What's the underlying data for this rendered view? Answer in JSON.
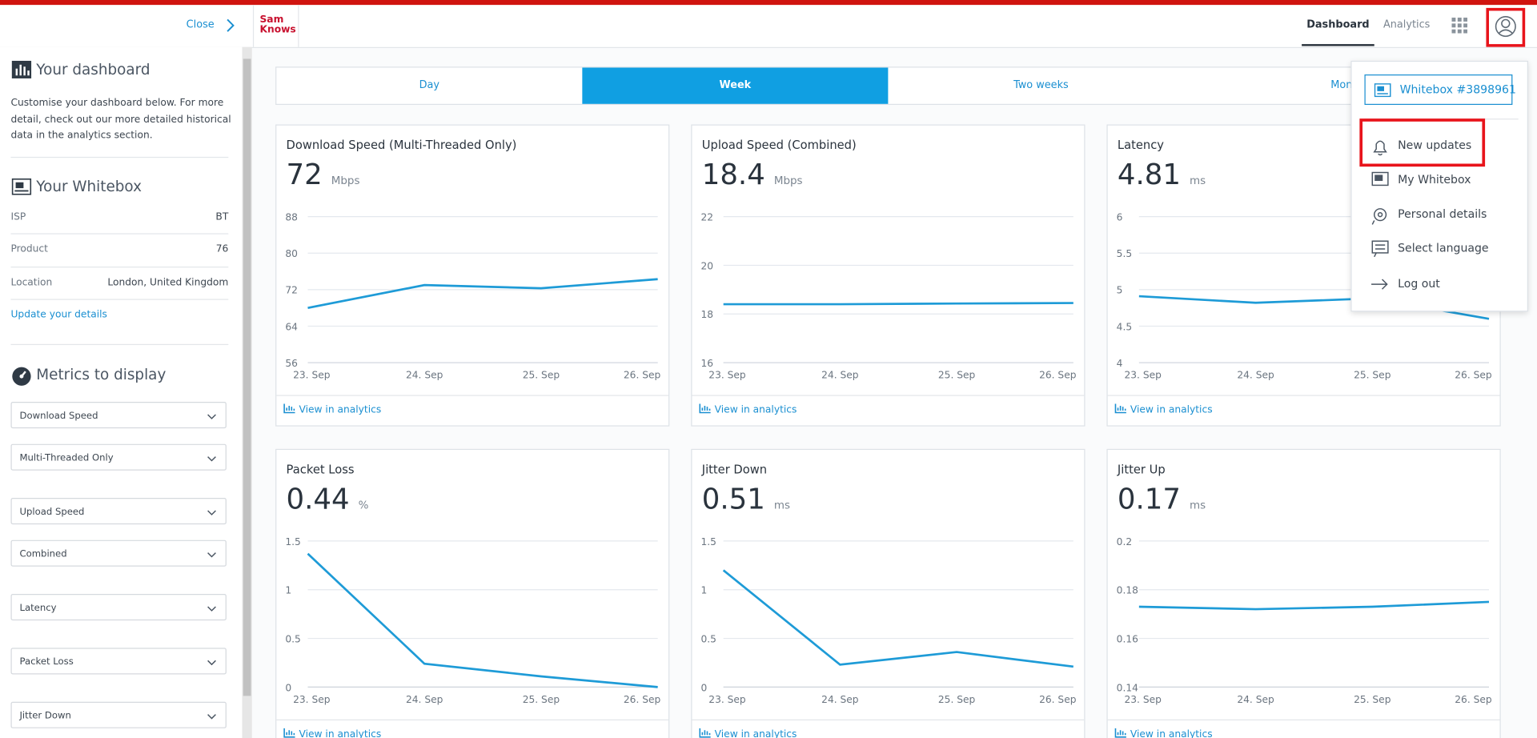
{
  "header": {
    "close": "Close",
    "logo": [
      "Sam",
      "Knows"
    ],
    "nav": [
      "Dashboard",
      "Analytics"
    ]
  },
  "sidebar": {
    "dashboard_title": "Your dashboard",
    "intro": [
      "Customise your dashboard below. For more",
      "detail, check out our more detailed historical",
      "data in the analytics section."
    ],
    "whitebox_title": "Your Whitebox",
    "details": [
      {
        "label": "ISP",
        "value": "BT"
      },
      {
        "label": "Product",
        "value": "76"
      },
      {
        "label": "Location",
        "value": "London, United Kingdom"
      }
    ],
    "update_link": "Update your details",
    "metrics_title": "Metrics to display",
    "selects": [
      "Download Speed",
      "Multi-Threaded Only",
      "Upload Speed",
      "Combined",
      "Latency",
      "Packet Loss",
      "Jitter Down"
    ]
  },
  "tabs": [
    "Day",
    "Week",
    "Two weeks",
    "Month"
  ],
  "cards": [
    {
      "title": "Download Speed (Multi-Threaded Only)",
      "value": 72,
      "unit": "Mbps",
      "link": "View in analytics",
      "chart": {
        "type": "line",
        "color": "#1e9bd7",
        "categories": [
          "23. Sep",
          "24. Sep",
          "25. Sep",
          "26. Sep"
        ],
        "values": [
          68,
          73,
          72.3,
          74.3
        ],
        "ylim": [
          56,
          88
        ],
        "yticks": [
          56,
          64,
          72,
          80,
          88
        ]
      }
    },
    {
      "title": "Upload Speed (Combined)",
      "value": 18.4,
      "unit": "Mbps",
      "link": "View in analytics",
      "chart": {
        "type": "line",
        "color": "#1e9bd7",
        "categories": [
          "23. Sep",
          "24. Sep",
          "25. Sep",
          "26. Sep"
        ],
        "values": [
          18.4,
          18.4,
          18.43,
          18.45
        ],
        "ylim": [
          16,
          22
        ],
        "yticks": [
          16,
          18,
          20,
          22
        ]
      }
    },
    {
      "title": "Latency",
      "value": 4.81,
      "unit": "ms",
      "link": "View in analytics",
      "chart": {
        "type": "line",
        "color": "#1e9bd7",
        "categories": [
          "23. Sep",
          "24. Sep",
          "25. Sep",
          "26. Sep"
        ],
        "values": [
          4.91,
          4.82,
          4.88,
          4.6
        ],
        "ylim": [
          4,
          6
        ],
        "yticks": [
          4,
          4.5,
          5,
          5.5,
          6
        ]
      }
    },
    {
      "title": "Packet Loss",
      "value": 0.44,
      "unit": "%",
      "link": "View in analytics",
      "chart": {
        "type": "line",
        "color": "#1e9bd7",
        "categories": [
          "23. Sep",
          "24. Sep",
          "25. Sep",
          "26. Sep"
        ],
        "values": [
          1.37,
          0.24,
          0.11,
          0
        ],
        "ylim": [
          0,
          1.5
        ],
        "yticks": [
          0,
          0.5,
          1,
          1.5
        ]
      }
    },
    {
      "title": "Jitter Down",
      "value": 0.51,
      "unit": "ms",
      "link": "View in analytics",
      "chart": {
        "type": "line",
        "color": "#1e9bd7",
        "categories": [
          "23. Sep",
          "24. Sep",
          "25. Sep",
          "26. Sep"
        ],
        "values": [
          1.2,
          0.23,
          0.36,
          0.21
        ],
        "ylim": [
          0,
          1.5
        ],
        "yticks": [
          0,
          0.5,
          1,
          1.5
        ]
      }
    },
    {
      "title": "Jitter Up",
      "value": 0.17,
      "unit": "ms",
      "link": "View in analytics",
      "chart": {
        "type": "line",
        "color": "#1e9bd7",
        "categories": [
          "23. Sep",
          "24. Sep",
          "25. Sep",
          "26. Sep"
        ],
        "values": [
          0.173,
          0.172,
          0.173,
          0.175
        ],
        "ylim": [
          0.14,
          0.2
        ],
        "yticks": [
          0.14,
          0.16,
          0.18,
          0.2
        ]
      }
    }
  ],
  "menu": {
    "device": "Whitebox #3898961",
    "items": [
      "New updates",
      "My Whitebox",
      "Personal details",
      "Select language",
      "Log out"
    ]
  }
}
